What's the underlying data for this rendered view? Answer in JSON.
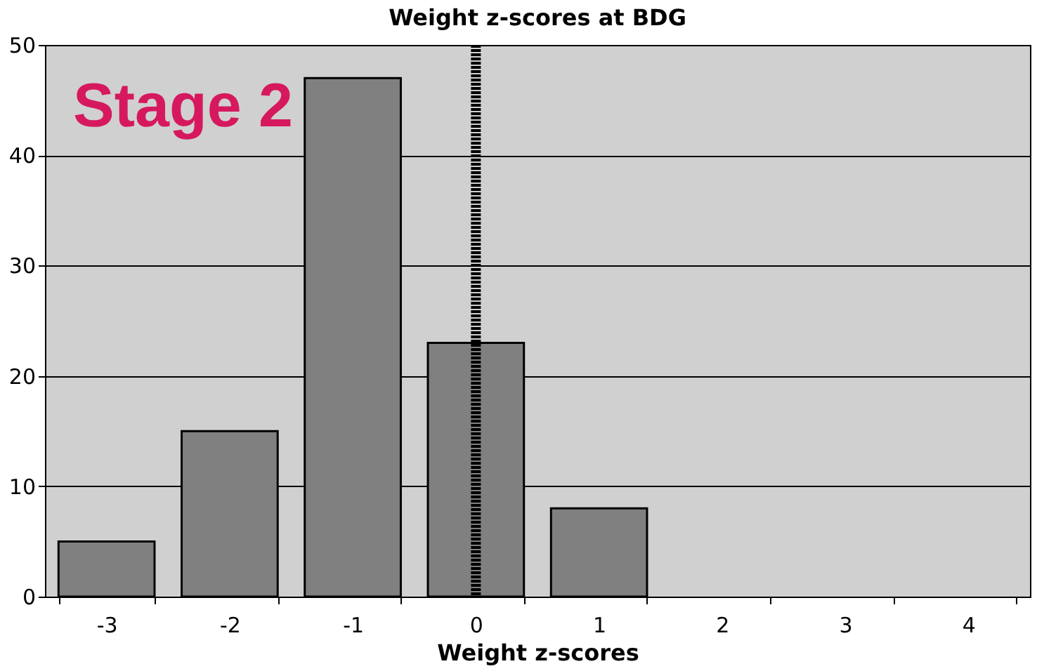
{
  "chart_data": {
    "type": "bar",
    "title": "Weight z-scores at BDG",
    "xlabel": "Weight z-scores",
    "categories": [
      "-3",
      "-2",
      "-1",
      "0",
      "1",
      "2",
      "3",
      "4"
    ],
    "values": [
      5,
      15,
      47,
      23,
      8,
      null,
      null,
      null
    ],
    "color": "#808080",
    "ylim": [
      0,
      50
    ],
    "yticks": [
      0,
      10,
      20,
      30,
      40,
      50
    ],
    "grid": "y",
    "ref_lines": [
      {
        "axis": "x",
        "value": "0",
        "color": "#000000",
        "line_style": "dotted"
      }
    ],
    "annotations": [
      "Stage 2"
    ]
  }
}
